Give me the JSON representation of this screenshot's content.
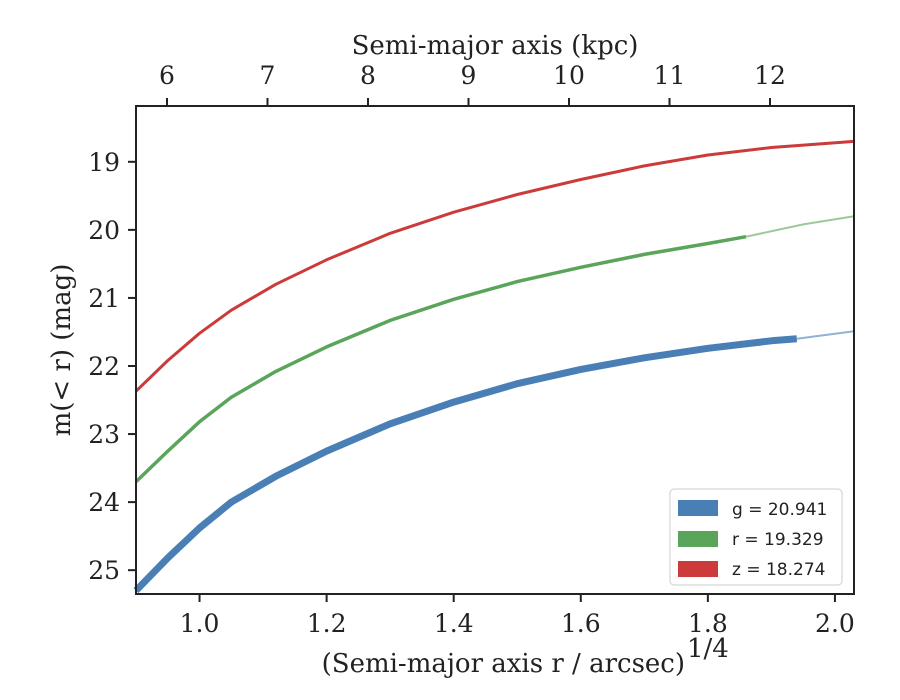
{
  "chart_data": {
    "type": "line",
    "xlabel": "(Semi-major axis r / arcsec)",
    "xlabel_exponent": "1/4",
    "ylabel": "m(< r) (mag)",
    "top_xlabel": "Semi-major axis (kpc)",
    "xlim": [
      0.9,
      2.03
    ],
    "ylim": [
      25.35,
      18.18
    ],
    "y_inverted": true,
    "x_ticks": [
      "1.0",
      "1.2",
      "1.4",
      "1.6",
      "1.8",
      "2.0"
    ],
    "y_ticks": [
      "19",
      "20",
      "21",
      "22",
      "23",
      "24",
      "25"
    ],
    "top_ticks": [
      "6",
      "7",
      "8",
      "9",
      "10",
      "11",
      "12"
    ],
    "grid": false,
    "legend_position": "lower-right",
    "series": [
      {
        "name": "g = 20.941",
        "band": "g",
        "value": "20.941",
        "color": "#4a7fb5",
        "x": [
          0.9,
          0.95,
          1.0,
          1.05,
          1.12,
          1.2,
          1.3,
          1.4,
          1.5,
          1.6,
          1.7,
          1.8,
          1.9,
          1.94,
          2.03
        ],
        "y": [
          25.3,
          24.82,
          24.38,
          24.0,
          23.62,
          23.25,
          22.85,
          22.53,
          22.26,
          22.05,
          21.88,
          21.74,
          21.63,
          21.6,
          21.49
        ],
        "solid_until": 1.94
      },
      {
        "name": "r = 19.329",
        "band": "r",
        "value": "19.329",
        "color": "#5aa55a",
        "x": [
          0.9,
          0.95,
          1.0,
          1.05,
          1.12,
          1.2,
          1.3,
          1.4,
          1.5,
          1.6,
          1.7,
          1.8,
          1.86,
          1.95,
          2.03
        ],
        "y": [
          23.7,
          23.25,
          22.82,
          22.46,
          22.08,
          21.72,
          21.33,
          21.02,
          20.76,
          20.55,
          20.36,
          20.2,
          20.1,
          19.92,
          19.8
        ],
        "solid_until": 1.86
      },
      {
        "name": "z = 18.274",
        "band": "z",
        "value": "18.274",
        "color": "#cc3a3a",
        "x": [
          0.9,
          0.95,
          1.0,
          1.05,
          1.12,
          1.2,
          1.3,
          1.4,
          1.5,
          1.6,
          1.7,
          1.8,
          1.9,
          2.03
        ],
        "y": [
          22.37,
          21.92,
          21.52,
          21.18,
          20.8,
          20.44,
          20.05,
          19.74,
          19.48,
          19.26,
          19.06,
          18.9,
          18.79,
          18.7
        ],
        "solid_until": 2.03
      }
    ]
  }
}
